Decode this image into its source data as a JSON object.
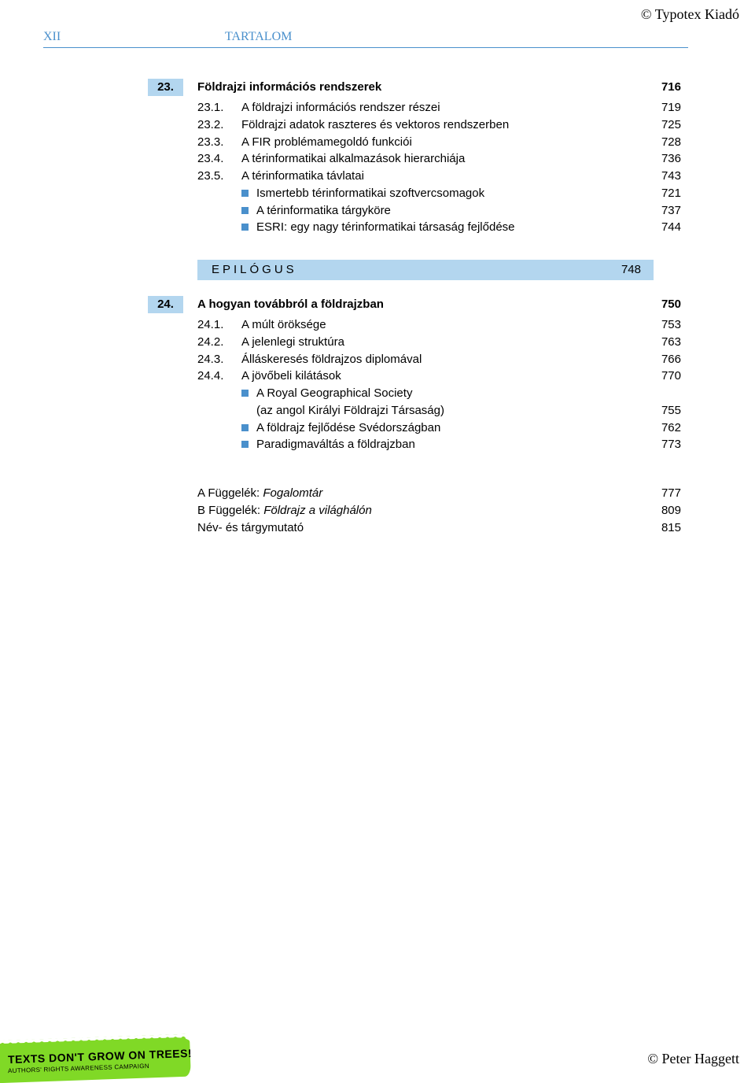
{
  "copyright_top": "© Typotex Kiadó",
  "copyright_bottom": "© Peter Haggett",
  "page_roman": "XII",
  "header": "TARTALOM",
  "sec23": {
    "num": "23.",
    "title": "Földrajzi információs rendszerek",
    "page": "716",
    "subs": [
      {
        "n": "23.1.",
        "t": "A földrajzi információs rendszer részei",
        "p": "719"
      },
      {
        "n": "23.2.",
        "t": "Földrajzi adatok raszteres és vektoros rendszerben",
        "p": "725"
      },
      {
        "n": "23.3.",
        "t": "A FIR problémamegoldó funkciói",
        "p": "728"
      },
      {
        "n": "23.4.",
        "t": "A térinformatikai alkalmazások hierarchiája",
        "p": "736"
      },
      {
        "n": "23.5.",
        "t": "A térinformatika távlatai",
        "p": "743"
      }
    ],
    "bullets": [
      {
        "t": "Ismertebb térinformatikai szoftvercsomagok",
        "p": "721"
      },
      {
        "t": "A térinformatika tárgyköre",
        "p": "737"
      },
      {
        "t": "ESRI: egy nagy térinformatikai társaság fejlődése",
        "p": "744"
      }
    ]
  },
  "epilogus": {
    "label": "EPILÓGUS",
    "page": "748"
  },
  "sec24": {
    "num": "24.",
    "title": "A hogyan továbbról a földrajzban",
    "page": "750",
    "subs": [
      {
        "n": "24.1.",
        "t": "A múlt öröksége",
        "p": "753"
      },
      {
        "n": "24.2.",
        "t": "A jelenlegi struktúra",
        "p": "763"
      },
      {
        "n": "24.3.",
        "t": "Álláskeresés földrajzos diplomával",
        "p": "766"
      },
      {
        "n": "24.4.",
        "t": "A jövőbeli kilátások",
        "p": "770"
      }
    ],
    "bullets": [
      {
        "t1": "A Royal Geographical Society",
        "t2": "(az angol Királyi Földrajzi Társaság)",
        "p": "755"
      },
      {
        "t": "A földrajz fejlődése Svédországban",
        "p": "762"
      },
      {
        "t": "Paradigmaváltás a földrajzban",
        "p": "773"
      }
    ]
  },
  "appendix": [
    {
      "pre": "A Függelék: ",
      "it": "Fogalomtár",
      "p": "777"
    },
    {
      "pre": "B Függelék: ",
      "it": "Földrajz a világhálón",
      "p": "809"
    },
    {
      "pre": "Név- és tárgymutató",
      "it": "",
      "p": "815"
    }
  ],
  "badge": {
    "main": "TEXTS DON'T GROW ON TREES!",
    "sub": "AUTHORS' RIGHTS AWARENESS CAMPAIGN"
  },
  "colors": {
    "accent": "#4a90cc",
    "box": "#b3d6ef",
    "badge": "#80d926"
  }
}
